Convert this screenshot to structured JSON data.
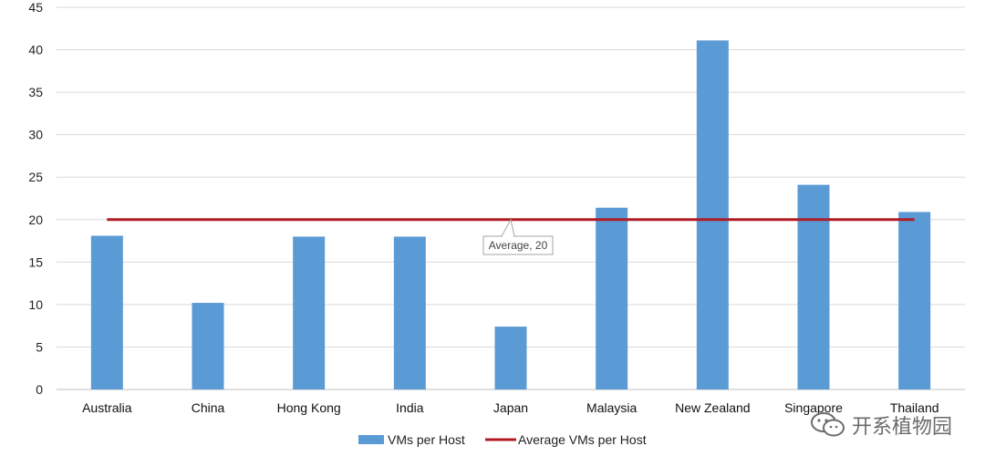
{
  "chart_data": {
    "type": "bar",
    "categories": [
      "Australia",
      "China",
      "Hong Kong",
      "India",
      "Japan",
      "Malaysia",
      "New Zealand",
      "Singapore",
      "Thailand"
    ],
    "series": [
      {
        "name": "VMs per Host",
        "type": "bar",
        "color": "#5b9bd5",
        "values": [
          18.1,
          10.2,
          18.0,
          18.0,
          7.4,
          21.4,
          41.1,
          24.1,
          20.9
        ]
      },
      {
        "name": "Average VMs per Host",
        "type": "line",
        "color": "#b01c24",
        "values": [
          20,
          20,
          20,
          20,
          20,
          20,
          20,
          20,
          20
        ]
      }
    ],
    "yticks": [
      0,
      5,
      10,
      15,
      20,
      25,
      30,
      35,
      40,
      45
    ],
    "ylim": [
      0,
      45
    ],
    "grid": true,
    "legend_position": "bottom",
    "annotation": {
      "text": "Average, 20",
      "category": "Japan",
      "value": 20
    }
  },
  "watermark": {
    "text": "开系植物园",
    "icon": "wechat-icon"
  }
}
